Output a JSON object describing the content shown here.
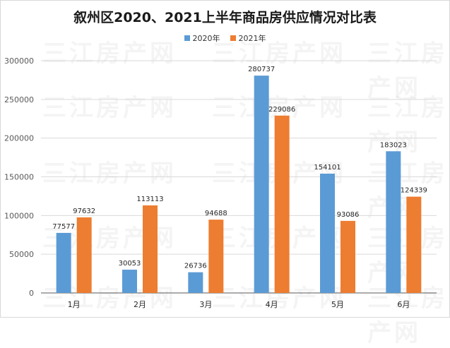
{
  "title": "叙州区2020、2021上半年商品房供应情况对比表",
  "watermark": "三江房产网",
  "colors": {
    "s2020": "#5b9bd5",
    "s2021": "#ed7d31",
    "grid": "#d9d9d9",
    "axis": "#595959"
  },
  "chart_data": {
    "type": "bar",
    "title": "叙州区2020、2021上半年商品房供应情况对比表",
    "categories": [
      "1月",
      "2月",
      "3月",
      "4月",
      "5月",
      "6月"
    ],
    "series": [
      {
        "name": "2020年",
        "values": [
          77577,
          30053,
          26736,
          280737,
          154101,
          183023
        ]
      },
      {
        "name": "2021年",
        "values": [
          97632,
          113113,
          94688,
          229086,
          93086,
          124339
        ]
      }
    ],
    "ylim": [
      0,
      300000
    ],
    "yticks": [
      "0",
      "50000",
      "100000",
      "150000",
      "200000",
      "250000",
      "300000"
    ],
    "grid": true,
    "legend": "top-center"
  }
}
